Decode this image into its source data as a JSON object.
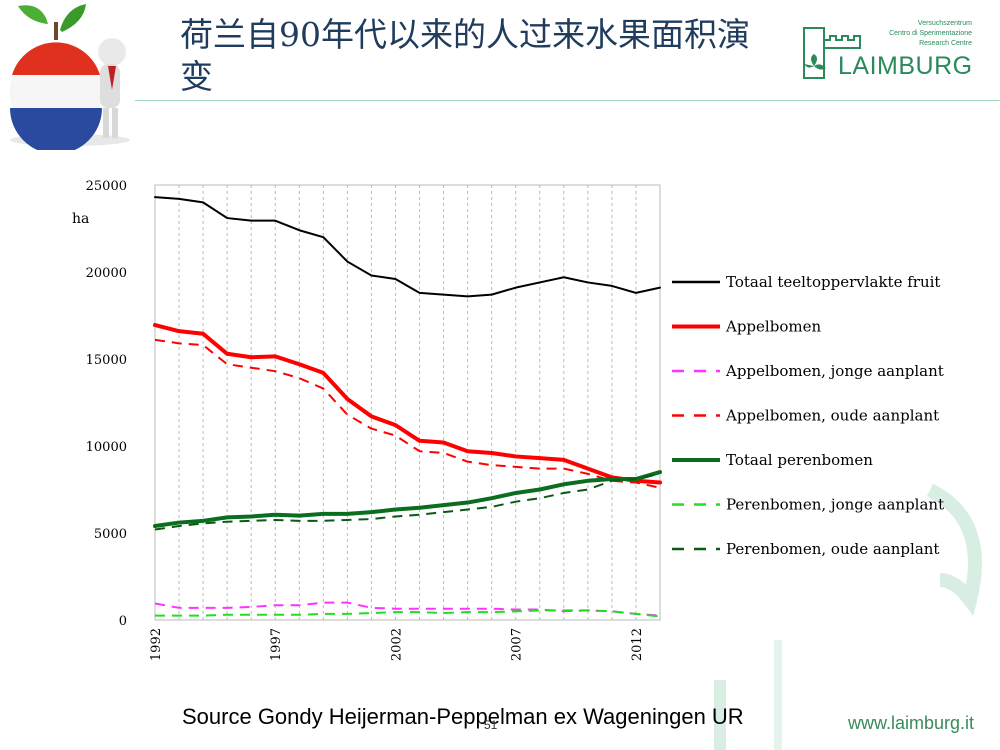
{
  "header": {
    "title": "荷兰自90年代以来的人过来水果面积演变",
    "logo_lines": [
      "Versuchszentrum",
      "Centro di Sperimentazione",
      "Research Centre"
    ],
    "logo_name": "LAIMBURG"
  },
  "footer": {
    "source": "Source Gondy Heijerman-Peppelman ex Wageningen UR",
    "page_number": "51",
    "website": "www.laimburg.it"
  },
  "colors": {
    "accent": "#2a8a5a",
    "title": "#1f3b5e"
  },
  "chart_data": {
    "type": "line",
    "ylabel": "ha",
    "ylim": [
      0,
      25000
    ],
    "yticks": [
      0,
      5000,
      10000,
      15000,
      20000,
      25000
    ],
    "xticks": [
      1992,
      1997,
      2002,
      2007,
      2012
    ],
    "grid": "vertical dashed",
    "legend": "right",
    "x": [
      1992,
      1993,
      1994,
      1995,
      1996,
      1997,
      1998,
      1999,
      2000,
      2001,
      2002,
      2003,
      2004,
      2005,
      2006,
      2007,
      2008,
      2009,
      2010,
      2011,
      2012,
      2013
    ],
    "series": [
      {
        "name": "Totaal teeltoppervlakte fruit",
        "color": "#000000",
        "dash": "solid",
        "width": 2,
        "values": [
          24300,
          24200,
          24000,
          23100,
          22950,
          22950,
          22400,
          22000,
          20600,
          19800,
          19600,
          18800,
          18700,
          18600,
          18700,
          19100,
          19400,
          19700,
          19400,
          19200,
          18800,
          19100
        ]
      },
      {
        "name": "Appelbomen",
        "color": "#ff0000",
        "dash": "solid",
        "width": 4,
        "values": [
          16950,
          16600,
          16450,
          15300,
          15100,
          15150,
          14700,
          14200,
          12700,
          11700,
          11200,
          10300,
          10200,
          9700,
          9600,
          9400,
          9300,
          9200,
          8700,
          8200,
          8000,
          7900
        ]
      },
      {
        "name": "Appelbomen, jonge aanplant",
        "color": "#ff33ff",
        "dash": "dashed",
        "width": 2,
        "values": [
          950,
          700,
          700,
          700,
          750,
          850,
          850,
          1000,
          1000,
          700,
          650,
          650,
          650,
          650,
          650,
          600,
          600,
          500,
          550,
          500,
          350,
          250
        ]
      },
      {
        "name": "Appelbomen, oude aanplant",
        "color": "#ff0000",
        "dash": "dashed",
        "width": 2,
        "values": [
          16100,
          15900,
          15800,
          14700,
          14500,
          14300,
          13900,
          13300,
          11800,
          11000,
          10600,
          9700,
          9600,
          9100,
          8900,
          8800,
          8700,
          8700,
          8400,
          8000,
          7900,
          7600
        ]
      },
      {
        "name": "Totaal perenbomen",
        "color": "#0a6e1e",
        "dash": "solid",
        "width": 4,
        "values": [
          5400,
          5600,
          5700,
          5900,
          5950,
          6050,
          6000,
          6100,
          6100,
          6200,
          6350,
          6450,
          6600,
          6750,
          7000,
          7300,
          7500,
          7800,
          8000,
          8100,
          8100,
          8500
        ]
      },
      {
        "name": "Perenbomen, jonge aanplant",
        "color": "#22dd22",
        "dash": "dashed",
        "width": 2,
        "values": [
          250,
          250,
          250,
          300,
          300,
          300,
          300,
          350,
          350,
          400,
          450,
          450,
          400,
          450,
          450,
          500,
          550,
          550,
          550,
          500,
          350,
          200
        ]
      },
      {
        "name": "Perenbomen, oude aanplant",
        "color": "#0a5a14",
        "dash": "dashed",
        "width": 2,
        "values": [
          5200,
          5400,
          5550,
          5650,
          5700,
          5750,
          5700,
          5700,
          5750,
          5800,
          5950,
          6050,
          6200,
          6350,
          6500,
          6800,
          7000,
          7300,
          7500,
          8000,
          8100,
          8400
        ]
      }
    ]
  }
}
